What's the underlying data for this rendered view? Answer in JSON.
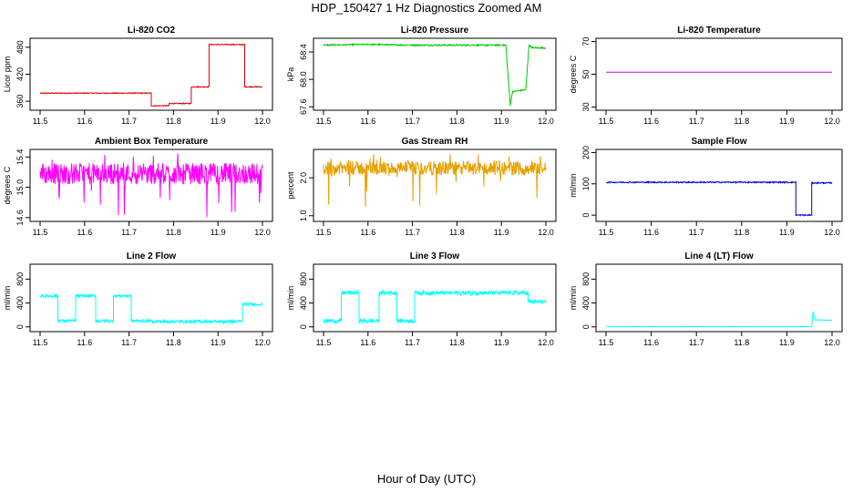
{
  "title": "HDP_150427  1 Hz Diagnostics Zoomed AM",
  "xlabel": "Hour of Day (UTC)",
  "chart_data": [
    {
      "type": "line",
      "title": "Li-820 CO2",
      "ylabel": "Licor ppm",
      "color": "#dd0000",
      "xlim": [
        11.5,
        12.0
      ],
      "ylim": [
        340,
        500
      ],
      "yticks": [
        "360",
        "420",
        "480"
      ],
      "ytick_values": [
        360,
        420,
        480
      ],
      "xticks": [
        "11.5",
        "11.6",
        "11.7",
        "11.8",
        "11.9",
        "12.0"
      ],
      "series": [
        {
          "x": [
            11.5,
            11.75,
            11.75,
            11.79,
            11.79,
            11.84,
            11.84,
            11.88,
            11.88,
            11.96,
            11.96,
            12.0
          ],
          "y": [
            378,
            378,
            350,
            350,
            355,
            355,
            392,
            392,
            486,
            486,
            392,
            392
          ],
          "noise": 1
        }
      ]
    },
    {
      "type": "line",
      "title": "Li-820 Pressure",
      "ylabel": "kPa",
      "color": "#00cc00",
      "xlim": [
        11.5,
        12.0
      ],
      "ylim": [
        67.55,
        68.6
      ],
      "yticks": [
        "67.6",
        "68.0",
        "68.4"
      ],
      "ytick_values": [
        67.6,
        68.0,
        68.4
      ],
      "xticks": [
        "11.5",
        "11.6",
        "11.7",
        "11.8",
        "11.9",
        "12.0"
      ],
      "series": [
        {
          "x": [
            11.5,
            11.6,
            11.7,
            11.8,
            11.91,
            11.915,
            11.92,
            11.925,
            11.955,
            11.962,
            11.97,
            12.0
          ],
          "y": [
            68.5,
            68.51,
            68.5,
            68.5,
            68.5,
            68.05,
            67.62,
            67.82,
            67.85,
            68.5,
            68.46,
            68.46
          ],
          "noise": 0.01
        }
      ]
    },
    {
      "type": "line",
      "title": "Li-820 Temperature",
      "ylabel": "degrees C",
      "color": "#cc00cc",
      "xlim": [
        11.5,
        12.0
      ],
      "ylim": [
        28,
        72
      ],
      "yticks": [
        "30",
        "50",
        "70"
      ],
      "ytick_values": [
        30,
        50,
        70
      ],
      "xticks": [
        "11.5",
        "11.6",
        "11.7",
        "11.8",
        "11.9",
        "12.0"
      ],
      "series": [
        {
          "x": [
            11.5,
            12.0
          ],
          "y": [
            51.2,
            51.2
          ],
          "noise": 0
        }
      ]
    },
    {
      "type": "line",
      "title": "Ambient Box Temperature",
      "ylabel": "degrees C",
      "color": "#ff00ff",
      "xlim": [
        11.5,
        12.0
      ],
      "ylim": [
        14.55,
        15.5
      ],
      "yticks": [
        "14.6",
        "15.0",
        "15.4"
      ],
      "ytick_values": [
        14.6,
        15.0,
        15.4
      ],
      "xticks": [
        "11.5",
        "11.6",
        "11.7",
        "11.8",
        "11.9",
        "12.0"
      ],
      "series": [
        {
          "x": [
            11.5,
            12.0
          ],
          "y": [
            15.18,
            15.18
          ],
          "noise": 0.14,
          "spikes_down": 14.6,
          "spikes_up": 15.45
        }
      ]
    },
    {
      "type": "line",
      "title": "Gas Stream RH",
      "ylabel": "percent",
      "color": "#e8a000",
      "xlim": [
        11.5,
        12.0
      ],
      "ylim": [
        0.85,
        2.75
      ],
      "yticks": [
        "1.0",
        "2.0"
      ],
      "ytick_values": [
        1.0,
        2.0
      ],
      "xticks": [
        "11.5",
        "11.6",
        "11.7",
        "11.8",
        "11.9",
        "12.0"
      ],
      "series": [
        {
          "x": [
            11.5,
            12.0
          ],
          "y": [
            2.25,
            2.25
          ],
          "noise": 0.18,
          "spikes_down": 1.0,
          "spikes_up": 2.65
        }
      ]
    },
    {
      "type": "line",
      "title": "Sample Flow",
      "ylabel": "ml/min",
      "color": "#0000cc",
      "xlim": [
        11.5,
        12.0
      ],
      "ylim": [
        -20,
        210
      ],
      "yticks": [
        "0",
        "100",
        "200"
      ],
      "ytick_values": [
        0,
        100,
        200
      ],
      "xticks": [
        "11.5",
        "11.6",
        "11.7",
        "11.8",
        "11.9",
        "12.0"
      ],
      "series": [
        {
          "x": [
            11.5,
            11.92,
            11.92,
            11.955,
            11.955,
            12.0
          ],
          "y": [
            105,
            105,
            0,
            0,
            103,
            103
          ],
          "noise": 2
        }
      ]
    },
    {
      "type": "line",
      "title": "Line 2 Flow",
      "ylabel": "ml/min",
      "color": "#00ffff",
      "xlim": [
        11.5,
        12.0
      ],
      "ylim": [
        -80,
        1050
      ],
      "yticks": [
        "0",
        "400",
        "800"
      ],
      "ytick_values": [
        0,
        400,
        800
      ],
      "xticks": [
        "11.5",
        "11.6",
        "11.7",
        "11.8",
        "11.9",
        "12.0"
      ],
      "series": [
        {
          "x": [
            11.5,
            11.54,
            11.54,
            11.58,
            11.58,
            11.625,
            11.625,
            11.665,
            11.665,
            11.705,
            11.705,
            11.75,
            11.75,
            11.955,
            11.955,
            12.0
          ],
          "y": [
            520,
            520,
            100,
            100,
            520,
            520,
            100,
            100,
            520,
            520,
            100,
            100,
            90,
            90,
            380,
            380
          ],
          "noise": 25
        }
      ]
    },
    {
      "type": "line",
      "title": "Line 3 Flow",
      "ylabel": "ml/min",
      "color": "#00ffff",
      "xlim": [
        11.5,
        12.0
      ],
      "ylim": [
        -80,
        1050
      ],
      "yticks": [
        "0",
        "400",
        "800"
      ],
      "ytick_values": [
        0,
        400,
        800
      ],
      "xticks": [
        "11.5",
        "11.6",
        "11.7",
        "11.8",
        "11.9",
        "12.0"
      ],
      "series": [
        {
          "x": [
            11.5,
            11.54,
            11.54,
            11.58,
            11.58,
            11.625,
            11.625,
            11.665,
            11.665,
            11.705,
            11.705,
            11.96,
            11.96,
            12.0
          ],
          "y": [
            100,
            100,
            570,
            570,
            100,
            100,
            570,
            570,
            100,
            100,
            570,
            570,
            420,
            420
          ],
          "noise": 35
        }
      ]
    },
    {
      "type": "line",
      "title": "Line 4 (LT) Flow",
      "ylabel": "ml/min",
      "color": "#00ffff",
      "xlim": [
        11.5,
        12.0
      ],
      "ylim": [
        -80,
        1050
      ],
      "yticks": [
        "0",
        "400",
        "800"
      ],
      "ytick_values": [
        0,
        400,
        800
      ],
      "xticks": [
        "11.5",
        "11.6",
        "11.7",
        "11.8",
        "11.9",
        "12.0"
      ],
      "series": [
        {
          "x": [
            11.5,
            11.955,
            11.955,
            11.958,
            11.962,
            11.97,
            12.0
          ],
          "y": [
            5,
            5,
            20,
            260,
            120,
            115,
            110
          ],
          "noise": 3
        }
      ]
    }
  ]
}
